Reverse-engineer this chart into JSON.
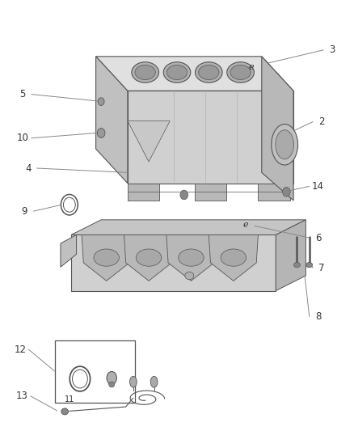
{
  "bg": "#ffffff",
  "outline": "#555555",
  "line": "#888888",
  "text": "#333333",
  "fig_w": 4.38,
  "fig_h": 5.33,
  "dpi": 100
}
